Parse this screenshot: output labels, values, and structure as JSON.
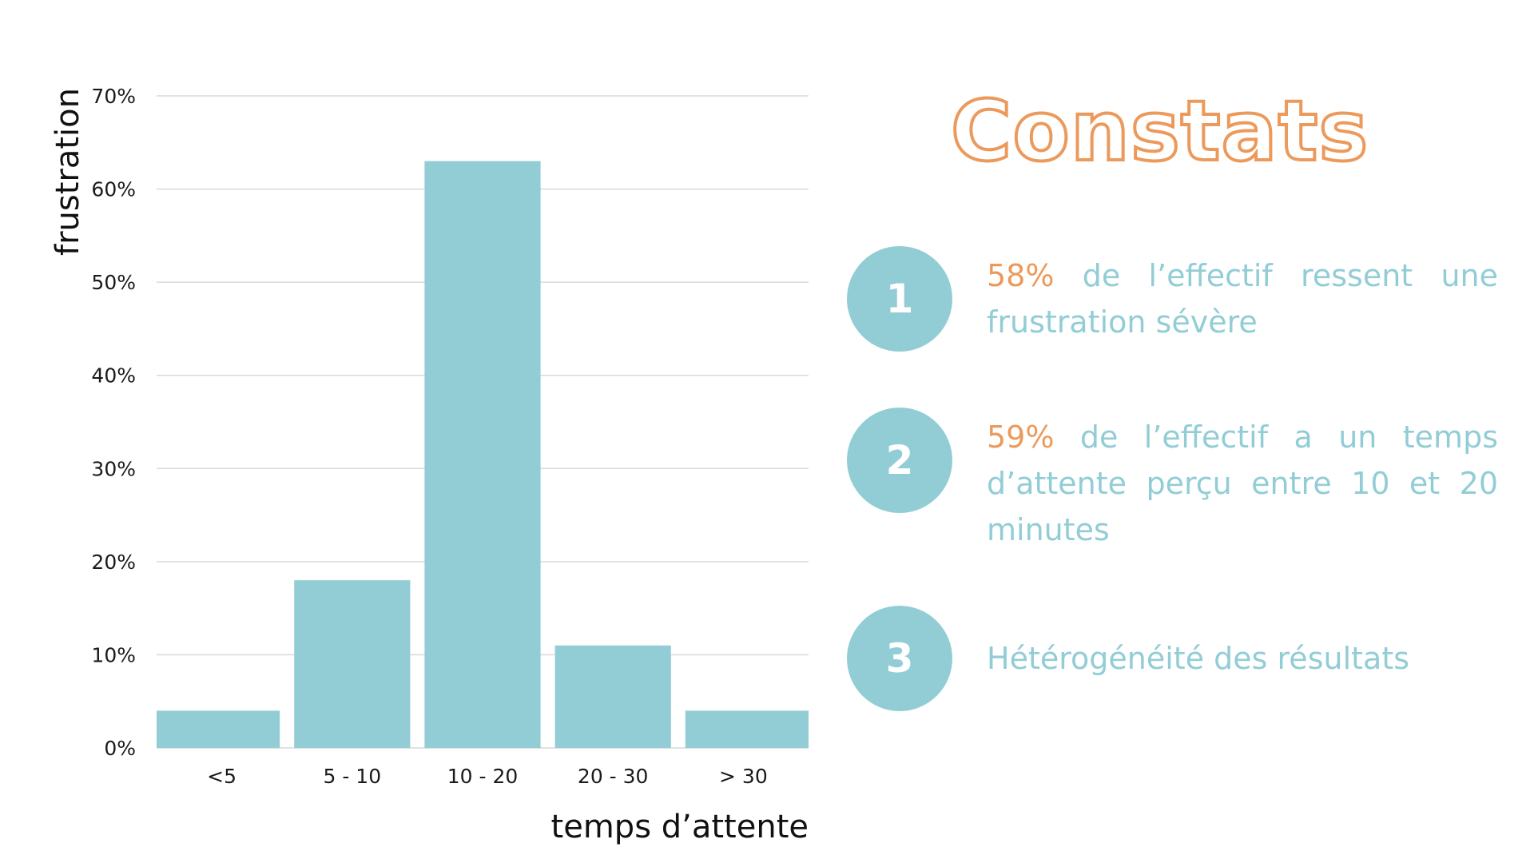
{
  "colors": {
    "bar": "#92cdd6",
    "accent": "#ec9a5c",
    "grid": "#d9d9d9",
    "axis_text": "#1a1a1a"
  },
  "chart_data": {
    "type": "bar",
    "categories": [
      "<5",
      "5 - 10",
      "10 - 20",
      "20 - 30",
      "> 30"
    ],
    "values": [
      4,
      18,
      63,
      11,
      4
    ],
    "ylim": [
      0,
      70
    ],
    "yticks": [
      0,
      10,
      20,
      30,
      40,
      50,
      60,
      70
    ],
    "ytick_labels": [
      "0%",
      "10%",
      "20%",
      "30%",
      "40%",
      "50%",
      "60%",
      "70%"
    ],
    "ylabel": "frustration",
    "xlabel": "temps d’attente",
    "grid": true
  },
  "panel": {
    "title": "Constats",
    "findings": [
      {
        "number": "1",
        "highlight": "58%",
        "text": " de l’effectif ressent une frustration sévère"
      },
      {
        "number": "2",
        "highlight": "59%",
        "text": " de l’effectif a un temps d’attente perçu entre 10 et 20 minutes"
      },
      {
        "number": "3",
        "highlight": "",
        "text": "Hétérogénéité des résultats"
      }
    ]
  }
}
